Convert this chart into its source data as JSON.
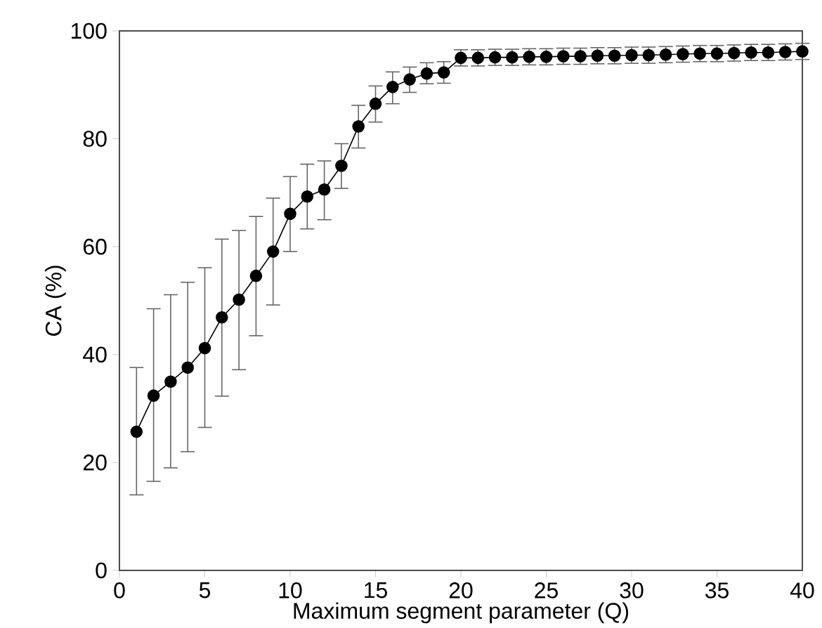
{
  "chart_data": {
    "type": "line",
    "xlabel": "Maximum segment parameter (Q)",
    "ylabel": "CA (%)",
    "x": [
      1,
      2,
      3,
      4,
      5,
      6,
      7,
      8,
      9,
      10,
      11,
      12,
      13,
      14,
      15,
      16,
      17,
      18,
      19,
      20,
      21,
      22,
      23,
      24,
      25,
      26,
      27,
      28,
      29,
      30,
      31,
      32,
      33,
      34,
      35,
      36,
      37,
      38,
      39,
      40
    ],
    "values": [
      25.7,
      32.4,
      35.0,
      37.6,
      41.2,
      46.9,
      50.2,
      54.6,
      59.1,
      66.1,
      69.3,
      70.6,
      75.0,
      82.3,
      86.5,
      89.6,
      91.0,
      92.1,
      92.3,
      95.0,
      95.0,
      95.1,
      95.1,
      95.2,
      95.2,
      95.3,
      95.3,
      95.4,
      95.4,
      95.5,
      95.5,
      95.6,
      95.7,
      95.8,
      95.8,
      95.9,
      96.0,
      96.0,
      96.1,
      96.2
    ],
    "errors": [
      [
        14.0,
        37.6
      ],
      [
        16.5,
        48.5
      ],
      [
        19.0,
        51.1
      ],
      [
        22.0,
        53.4
      ],
      [
        26.5,
        56.1
      ],
      [
        32.3,
        61.4
      ],
      [
        37.2,
        63.0
      ],
      [
        43.5,
        65.6
      ],
      [
        49.2,
        69.0
      ],
      [
        59.1,
        73.0
      ],
      [
        63.3,
        75.3
      ],
      [
        65.0,
        75.9
      ],
      [
        70.8,
        79.1
      ],
      [
        78.3,
        86.2
      ],
      [
        83.1,
        89.8
      ],
      [
        86.5,
        92.4
      ],
      [
        88.6,
        93.3
      ],
      [
        90.2,
        94.1
      ],
      [
        90.3,
        94.3
      ],
      1.5,
      1.5,
      1.5,
      1.5,
      1.5,
      1.5,
      1.5,
      1.5,
      1.5,
      1.5,
      1.5,
      1.5,
      1.5,
      1.5,
      1.5,
      1.5,
      1.5,
      1.5,
      1.5,
      1.5,
      1.5
    ],
    "color": "#000000",
    "marker": "circle",
    "line_style": "solid",
    "grid": false,
    "xlim": [
      0,
      40
    ],
    "xticks": [
      0,
      5,
      10,
      15,
      20,
      25,
      30,
      35,
      40
    ],
    "ylim": [
      0,
      100
    ],
    "yticks": [
      0,
      20,
      40,
      60,
      80,
      100
    ]
  }
}
